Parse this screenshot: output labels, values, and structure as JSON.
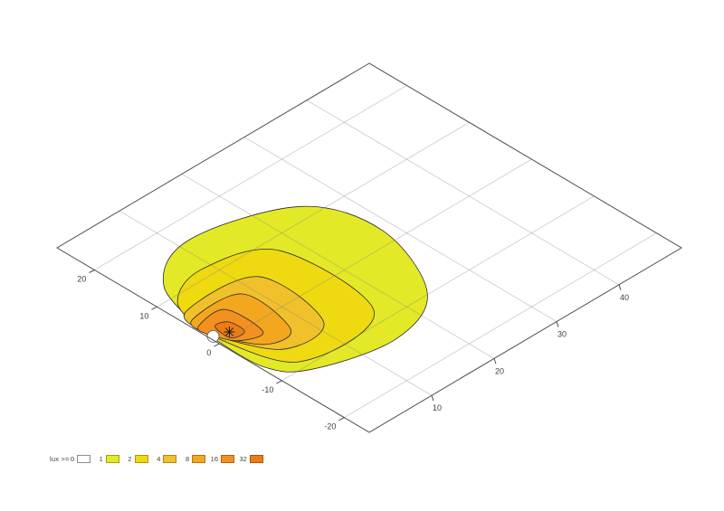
{
  "page": {
    "background": "#ffffff"
  },
  "legend": {
    "title": "lux >=",
    "items": [
      {
        "label": "0",
        "fill": "#ffffff",
        "border": "#8c8c8c"
      },
      {
        "label": "1",
        "fill": "#e3e926",
        "border": "#9aa011"
      },
      {
        "label": "2",
        "fill": "#efd911",
        "border": "#ab9a0b"
      },
      {
        "label": "4",
        "fill": "#f0c12a",
        "border": "#b0871a"
      },
      {
        "label": "8",
        "fill": "#f3a71f",
        "border": "#b27414"
      },
      {
        "label": "16",
        "fill": "#f29120",
        "border": "#aa6412"
      },
      {
        "label": "32",
        "fill": "#ee7c15",
        "border": "#a5540e"
      }
    ]
  },
  "chart_data": {
    "type": "heatmap",
    "subtype": "filled-contour-illuminance-map-on-3d-plane",
    "title": "",
    "xlabel": "",
    "ylabel": "",
    "x_axis": {
      "ticks": [
        10,
        20,
        30,
        40
      ],
      "range": [
        0,
        50
      ]
    },
    "y_axis": {
      "ticks": [
        20,
        10,
        0,
        -10,
        -20
      ],
      "range": [
        -24,
        26
      ]
    },
    "grid": true,
    "legend_position": "bottom-left",
    "lamp_marker": {
      "position": [
        2.4,
        0.8
      ],
      "symbol": "asterisk"
    },
    "source_gap": {
      "center": [
        0.5,
        1.5
      ],
      "screen_radius": 6.5
    },
    "pinch_point": [
      0.3,
      2.3
    ],
    "levels": [
      {
        "lux": 1,
        "color": "#e3e926",
        "pinched": true,
        "outline": [
          [
            0.3,
            2.3
          ],
          [
            3.4,
            12.3
          ],
          [
            11.8,
            16.5
          ],
          [
            25.1,
            12.1
          ],
          [
            28.4,
            2.2
          ],
          [
            23.5,
            -9.8
          ],
          [
            14.7,
            -13.5
          ],
          [
            4.0,
            -10.9
          ],
          [
            0.4,
            -6.6
          ]
        ]
      },
      {
        "lux": 2,
        "color": "#efd911",
        "pinched": true,
        "outline": [
          [
            0.3,
            2.3
          ],
          [
            2.2,
            8.9
          ],
          [
            8.7,
            11.5
          ],
          [
            17.5,
            7.7
          ],
          [
            16.7,
            -8.1
          ],
          [
            3.9,
            -8.8
          ]
        ]
      },
      {
        "lux": 4,
        "color": "#f0c12a",
        "pinched": true,
        "outline": [
          [
            0.3,
            2.3
          ],
          [
            1.6,
            7.0
          ],
          [
            12.2,
            6.0
          ],
          [
            11.3,
            -5.4
          ],
          [
            4.3,
            -5.8
          ]
        ]
      },
      {
        "lux": 8,
        "color": "#f3a71f",
        "pinched": true,
        "outline": [
          [
            0.3,
            2.3
          ],
          [
            1.0,
            5.4
          ],
          [
            8.6,
            4.9
          ],
          [
            7.7,
            -3.7
          ],
          [
            3.5,
            -3.7
          ]
        ]
      },
      {
        "lux": 16,
        "color": "#f29120",
        "pinched": true,
        "outline": [
          [
            0.3,
            2.3
          ],
          [
            0.6,
            4.0
          ],
          [
            5.1,
            4.2
          ],
          [
            5.1,
            -1.9
          ],
          [
            1.8,
            -1.0
          ]
        ]
      },
      {
        "lux": 32,
        "color": "#ee7c15",
        "pinched": false,
        "outline": [
          [
            2.0,
            2.7
          ],
          [
            3.7,
            2.2
          ],
          [
            3.7,
            -0.35
          ],
          [
            1.7,
            -0.1
          ]
        ]
      }
    ]
  }
}
